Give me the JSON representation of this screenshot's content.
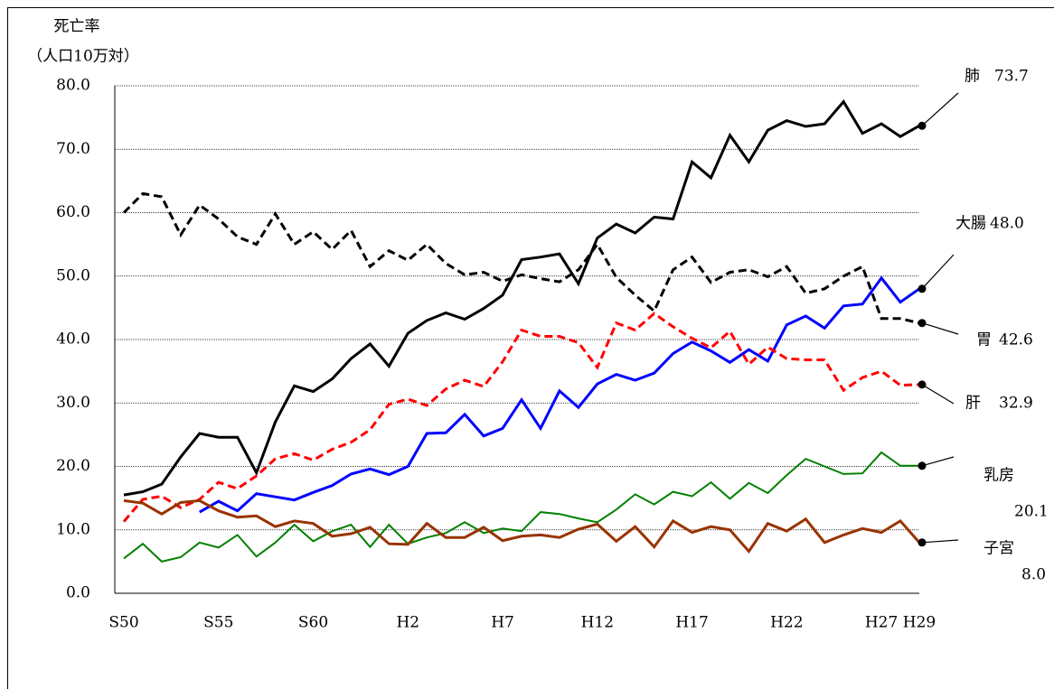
{
  "chart_data": {
    "type": "line",
    "y_axis_title": [
      "死亡率",
      "（人口10万対）"
    ],
    "categories": [
      "S50",
      null,
      null,
      null,
      null,
      "S55",
      null,
      null,
      null,
      null,
      "S60",
      null,
      null,
      null,
      null,
      "H2",
      null,
      null,
      null,
      null,
      "H7",
      null,
      null,
      null,
      null,
      "H12",
      null,
      null,
      null,
      null,
      "H17",
      null,
      null,
      null,
      null,
      "H22",
      null,
      null,
      null,
      null,
      "H27",
      null,
      "H29"
    ],
    "ylim": [
      0,
      80
    ],
    "yticks": [
      {
        "value": 0,
        "label": "0.0"
      },
      {
        "value": 10,
        "label": "10.0"
      },
      {
        "value": 20,
        "label": "20.0"
      },
      {
        "value": 30,
        "label": "30.0"
      },
      {
        "value": 40,
        "label": "40.0"
      },
      {
        "value": 50,
        "label": "50.0"
      },
      {
        "value": 60,
        "label": "60.0"
      },
      {
        "value": 70,
        "label": "70.0"
      },
      {
        "value": 80,
        "label": "80.0"
      }
    ],
    "grid": true,
    "series": [
      {
        "name": "肺",
        "color": "#000000",
        "dashed": false,
        "line_width": 3,
        "end_label": "73.7",
        "values": [
          15.5,
          16.0,
          17.2,
          21.5,
          25.2,
          24.6,
          24.6,
          19.0,
          27.0,
          32.7,
          31.8,
          33.8,
          37.0,
          39.3,
          35.8,
          41.0,
          43.0,
          44.2,
          43.2,
          44.9,
          47.0,
          52.6,
          53.0,
          53.5,
          48.8,
          56.0,
          58.2,
          56.8,
          59.3,
          59.0,
          68.0,
          65.5,
          72.2,
          68.0,
          73.0,
          74.5,
          73.6,
          74.0,
          77.5,
          72.5,
          74.0,
          72.0,
          73.7
        ]
      },
      {
        "name": "胃",
        "color": "#000000",
        "dashed": true,
        "line_width": 3,
        "end_label": "42.6",
        "values": [
          60.0,
          63.0,
          62.5,
          56.5,
          61.2,
          59.0,
          56.2,
          55.0,
          59.8,
          55.0,
          57.0,
          54.2,
          57.2,
          51.5,
          54.0,
          52.5,
          55.0,
          52.0,
          50.2,
          50.6,
          49.2,
          50.2,
          49.6,
          49.1,
          51.0,
          55.0,
          49.8,
          47.0,
          44.5,
          51.0,
          53.0,
          49.0,
          50.6,
          51.0,
          49.9,
          51.5,
          47.3,
          48.0,
          50.0,
          51.5,
          43.3,
          43.3,
          42.6
        ]
      },
      {
        "name": "大腸",
        "color": "#0000ff",
        "dashed": false,
        "line_width": 3,
        "end_label": "48.0",
        "values": [
          null,
          null,
          null,
          null,
          12.8,
          14.5,
          13.0,
          15.7,
          15.2,
          14.7,
          15.9,
          17.0,
          18.8,
          19.6,
          18.7,
          20.0,
          25.2,
          25.3,
          28.2,
          24.8,
          26.0,
          30.5,
          26.0,
          31.9,
          29.3,
          33.0,
          34.5,
          33.6,
          34.7,
          37.8,
          39.6,
          38.2,
          36.4,
          38.4,
          36.6,
          42.3,
          43.7,
          41.8,
          45.3,
          45.6,
          49.7,
          45.9,
          48.0
        ]
      },
      {
        "name": "肝",
        "color": "#ff0000",
        "dashed": true,
        "line_width": 3,
        "end_label": "32.9",
        "values": [
          11.3,
          14.8,
          15.3,
          13.5,
          14.8,
          17.5,
          16.5,
          18.5,
          21.2,
          22.0,
          21.0,
          22.7,
          23.8,
          25.8,
          29.8,
          30.6,
          29.6,
          32.2,
          33.6,
          32.6,
          36.5,
          41.5,
          40.5,
          40.5,
          39.5,
          35.6,
          42.6,
          41.5,
          44.1,
          42.0,
          40.2,
          38.7,
          41.3,
          36.1,
          38.8,
          37.0,
          36.8,
          36.8,
          32.0,
          34.0,
          35.0,
          32.8,
          32.9
        ]
      },
      {
        "name": "乳房",
        "color": "#008000",
        "dashed": false,
        "line_width": 2,
        "end_label": "20.1",
        "values": [
          5.5,
          7.8,
          5.0,
          5.7,
          8.0,
          7.2,
          9.2,
          5.8,
          8.0,
          10.8,
          8.2,
          9.8,
          10.8,
          7.3,
          10.8,
          7.8,
          8.8,
          9.5,
          11.2,
          9.5,
          10.2,
          9.8,
          12.8,
          12.5,
          11.8,
          11.2,
          13.2,
          15.6,
          14.0,
          16.0,
          15.3,
          17.5,
          14.9,
          17.4,
          15.8,
          18.6,
          21.2,
          20.0,
          18.8,
          18.9,
          22.2,
          20.1,
          20.1
        ]
      },
      {
        "name": "子宮",
        "color": "#993300",
        "dashed": false,
        "line_width": 3,
        "end_label": "8.0",
        "values": [
          14.6,
          14.2,
          12.5,
          14.3,
          14.6,
          13.0,
          12.0,
          12.2,
          10.5,
          11.4,
          11.0,
          9.0,
          9.4,
          10.4,
          7.8,
          7.7,
          11.0,
          8.8,
          8.8,
          10.4,
          8.3,
          9.0,
          9.2,
          8.8,
          10.1,
          10.9,
          8.2,
          10.5,
          7.3,
          11.4,
          9.6,
          10.5,
          10.0,
          6.6,
          11.0,
          9.8,
          11.7,
          8.0,
          9.2,
          10.2,
          9.6,
          11.4,
          8.0
        ]
      }
    ]
  }
}
